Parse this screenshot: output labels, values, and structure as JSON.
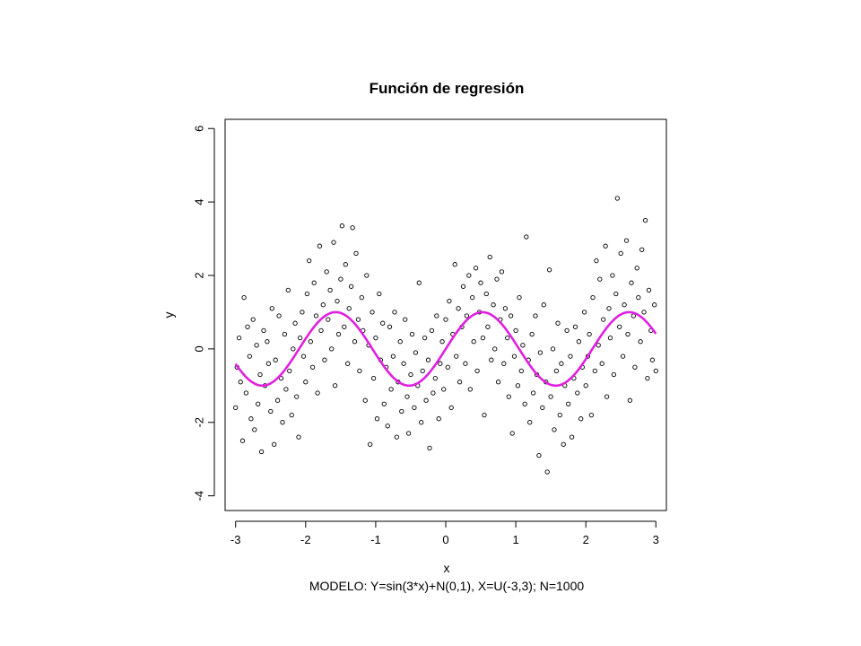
{
  "chart_data": {
    "type": "scatter",
    "title": "Función de regresión",
    "xlabel": "x",
    "ylabel": "y",
    "subtitle": "MODELO: Y=sin(3*x)+N(0,1), X=U(-3,3);  N=1000",
    "xlim": [
      -3.15,
      3.15
    ],
    "ylim": [
      -4.4,
      6.25
    ],
    "xticks": [
      -3,
      -2,
      -1,
      0,
      1,
      2,
      3
    ],
    "yticks": [
      -4,
      -2,
      0,
      2,
      4,
      6
    ],
    "xtick_labels": [
      "-3",
      "-2",
      "-1",
      "0",
      "1",
      "2",
      "3"
    ],
    "ytick_labels": [
      "-4",
      "-2",
      "0",
      "2",
      "4",
      "6"
    ],
    "grid": false,
    "series": [
      {
        "type": "scatter",
        "marker": "open-circle",
        "color": "#000000",
        "points": [
          [
            -3.0,
            -1.6
          ],
          [
            -2.98,
            -0.5
          ],
          [
            -2.95,
            0.3
          ],
          [
            -2.93,
            -0.9
          ],
          [
            -2.9,
            -2.5
          ],
          [
            -2.88,
            1.4
          ],
          [
            -2.85,
            -1.2
          ],
          [
            -2.83,
            0.6
          ],
          [
            -2.8,
            -0.2
          ],
          [
            -2.78,
            -1.9
          ],
          [
            -2.75,
            0.8
          ],
          [
            -2.73,
            -2.2
          ],
          [
            -2.7,
            0.1
          ],
          [
            -2.68,
            -1.5
          ],
          [
            -2.65,
            -0.7
          ],
          [
            -2.63,
            -2.8
          ],
          [
            -2.6,
            0.5
          ],
          [
            -2.58,
            -1.0
          ],
          [
            -2.55,
            0.2
          ],
          [
            -2.53,
            -0.4
          ],
          [
            -2.5,
            -1.7
          ],
          [
            -2.48,
            1.1
          ],
          [
            -2.45,
            -2.6
          ],
          [
            -2.43,
            -0.3
          ],
          [
            -2.4,
            -1.4
          ],
          [
            -2.38,
            0.9
          ],
          [
            -2.35,
            -0.8
          ],
          [
            -2.33,
            -2.0
          ],
          [
            -2.3,
            0.4
          ],
          [
            -2.28,
            -1.1
          ],
          [
            -2.25,
            1.6
          ],
          [
            -2.23,
            -0.6
          ],
          [
            -2.2,
            -1.8
          ],
          [
            -2.18,
            0.0
          ],
          [
            -2.15,
            0.7
          ],
          [
            -2.13,
            -1.3
          ],
          [
            -2.1,
            -2.4
          ],
          [
            -2.08,
            0.3
          ],
          [
            -2.05,
            1.0
          ],
          [
            -2.03,
            -0.2
          ],
          [
            -2.0,
            -0.9
          ],
          [
            -1.98,
            1.5
          ],
          [
            -1.95,
            2.4
          ],
          [
            -1.93,
            0.2
          ],
          [
            -1.9,
            -0.5
          ],
          [
            -1.88,
            1.8
          ],
          [
            -1.85,
            0.9
          ],
          [
            -1.83,
            -1.2
          ],
          [
            -1.8,
            2.8
          ],
          [
            -1.78,
            0.5
          ],
          [
            -1.75,
            1.2
          ],
          [
            -1.73,
            -0.3
          ],
          [
            -1.7,
            2.1
          ],
          [
            -1.68,
            0.8
          ],
          [
            -1.65,
            1.6
          ],
          [
            -1.63,
            0.0
          ],
          [
            -1.6,
            2.9
          ],
          [
            -1.58,
            -1.0
          ],
          [
            -1.55,
            1.3
          ],
          [
            -1.53,
            0.4
          ],
          [
            -1.5,
            1.9
          ],
          [
            -1.48,
            3.35
          ],
          [
            -1.45,
            0.6
          ],
          [
            -1.43,
            2.3
          ],
          [
            -1.4,
            -0.4
          ],
          [
            -1.38,
            1.1
          ],
          [
            -1.35,
            1.7
          ],
          [
            -1.33,
            3.3
          ],
          [
            -1.3,
            0.2
          ],
          [
            -1.28,
            2.6
          ],
          [
            -1.25,
            0.8
          ],
          [
            -1.23,
            -0.6
          ],
          [
            -1.2,
            1.4
          ],
          [
            -1.18,
            0.5
          ],
          [
            -1.15,
            -1.4
          ],
          [
            -1.13,
            2.0
          ],
          [
            -1.1,
            0.1
          ],
          [
            -1.08,
            -2.6
          ],
          [
            -1.05,
            1.0
          ],
          [
            -1.03,
            -0.8
          ],
          [
            -1.0,
            0.3
          ],
          [
            -0.98,
            -1.9
          ],
          [
            -0.95,
            1.5
          ],
          [
            -0.93,
            -0.3
          ],
          [
            -0.9,
            0.7
          ],
          [
            -0.88,
            -1.5
          ],
          [
            -0.85,
            -0.5
          ],
          [
            -0.83,
            -2.1
          ],
          [
            -0.8,
            0.6
          ],
          [
            -0.78,
            -1.1
          ],
          [
            -0.75,
            -0.2
          ],
          [
            -0.73,
            1.0
          ],
          [
            -0.7,
            -2.4
          ],
          [
            -0.68,
            -0.9
          ],
          [
            -0.65,
            0.2
          ],
          [
            -0.63,
            -1.7
          ],
          [
            -0.6,
            -0.4
          ],
          [
            -0.58,
            0.8
          ],
          [
            -0.55,
            -1.3
          ],
          [
            -0.53,
            -2.3
          ],
          [
            -0.5,
            -0.7
          ],
          [
            -0.48,
            0.4
          ],
          [
            -0.45,
            -1.6
          ],
          [
            -0.43,
            -0.1
          ],
          [
            -0.4,
            -1.0
          ],
          [
            -0.38,
            1.8
          ],
          [
            -0.35,
            -2.0
          ],
          [
            -0.33,
            -0.6
          ],
          [
            -0.3,
            0.3
          ],
          [
            -0.28,
            -1.4
          ],
          [
            -0.25,
            -0.3
          ],
          [
            -0.23,
            -2.7
          ],
          [
            -0.2,
            0.5
          ],
          [
            -0.18,
            -1.2
          ],
          [
            -0.15,
            -0.8
          ],
          [
            -0.13,
            0.9
          ],
          [
            -0.1,
            -1.9
          ],
          [
            -0.08,
            -0.4
          ],
          [
            -0.05,
            0.2
          ],
          [
            -0.03,
            -1.1
          ],
          [
            0.0,
            0.8
          ],
          [
            0.03,
            -0.5
          ],
          [
            0.05,
            1.3
          ],
          [
            0.08,
            -1.6
          ],
          [
            0.1,
            0.4
          ],
          [
            0.13,
            2.3
          ],
          [
            0.15,
            -0.2
          ],
          [
            0.18,
            1.1
          ],
          [
            0.2,
            -0.9
          ],
          [
            0.23,
            0.6
          ],
          [
            0.25,
            1.7
          ],
          [
            0.28,
            -0.4
          ],
          [
            0.3,
            0.9
          ],
          [
            0.33,
            2.0
          ],
          [
            0.35,
            -1.1
          ],
          [
            0.38,
            1.4
          ],
          [
            0.4,
            0.2
          ],
          [
            0.43,
            2.2
          ],
          [
            0.45,
            -0.6
          ],
          [
            0.48,
            1.0
          ],
          [
            0.5,
            1.8
          ],
          [
            0.53,
            0.3
          ],
          [
            0.55,
            -1.8
          ],
          [
            0.58,
            1.5
          ],
          [
            0.6,
            0.6
          ],
          [
            0.63,
            2.5
          ],
          [
            0.65,
            -0.3
          ],
          [
            0.68,
            1.2
          ],
          [
            0.7,
            0.0
          ],
          [
            0.73,
            1.9
          ],
          [
            0.75,
            -0.9
          ],
          [
            0.78,
            0.8
          ],
          [
            0.8,
            2.1
          ],
          [
            0.83,
            -0.4
          ],
          [
            0.85,
            1.1
          ],
          [
            0.88,
            0.3
          ],
          [
            0.9,
            -1.3
          ],
          [
            0.93,
            0.9
          ],
          [
            0.95,
            -2.3
          ],
          [
            0.98,
            -0.2
          ],
          [
            1.0,
            0.5
          ],
          [
            1.03,
            -1.0
          ],
          [
            1.05,
            1.4
          ],
          [
            1.08,
            -0.6
          ],
          [
            1.1,
            0.1
          ],
          [
            1.13,
            -1.5
          ],
          [
            1.15,
            3.05
          ],
          [
            1.18,
            -0.3
          ],
          [
            1.2,
            -2.0
          ],
          [
            1.23,
            0.4
          ],
          [
            1.25,
            -1.2
          ],
          [
            1.28,
            0.9
          ],
          [
            1.3,
            -0.7
          ],
          [
            1.33,
            -2.9
          ],
          [
            1.35,
            -0.1
          ],
          [
            1.38,
            -1.6
          ],
          [
            1.4,
            1.2
          ],
          [
            1.43,
            -0.9
          ],
          [
            1.45,
            -3.35
          ],
          [
            1.48,
            2.15
          ],
          [
            1.5,
            -1.3
          ],
          [
            1.53,
            0.0
          ],
          [
            1.55,
            -2.2
          ],
          [
            1.58,
            -0.6
          ],
          [
            1.6,
            0.7
          ],
          [
            1.63,
            -1.8
          ],
          [
            1.65,
            -0.4
          ],
          [
            1.68,
            -2.6
          ],
          [
            1.7,
            -1.0
          ],
          [
            1.73,
            0.5
          ],
          [
            1.75,
            -1.5
          ],
          [
            1.78,
            -0.2
          ],
          [
            1.8,
            -2.4
          ],
          [
            1.83,
            -0.8
          ],
          [
            1.85,
            0.6
          ],
          [
            1.88,
            -1.2
          ],
          [
            1.9,
            0.2
          ],
          [
            1.93,
            -1.9
          ],
          [
            1.95,
            -0.5
          ],
          [
            1.98,
            1.0
          ],
          [
            2.0,
            -1.0
          ],
          [
            2.03,
            -0.2
          ],
          [
            2.05,
            0.4
          ],
          [
            2.08,
            -1.8
          ],
          [
            2.1,
            1.4
          ],
          [
            2.13,
            -0.6
          ],
          [
            2.15,
            2.4
          ],
          [
            2.18,
            0.1
          ],
          [
            2.2,
            1.9
          ],
          [
            2.23,
            -0.4
          ],
          [
            2.25,
            0.8
          ],
          [
            2.28,
            2.8
          ],
          [
            2.3,
            -1.3
          ],
          [
            2.33,
            1.1
          ],
          [
            2.35,
            0.3
          ],
          [
            2.38,
            2.0
          ],
          [
            2.4,
            -0.7
          ],
          [
            2.43,
            1.5
          ],
          [
            2.45,
            4.1
          ],
          [
            2.48,
            0.6
          ],
          [
            2.5,
            2.6
          ],
          [
            2.53,
            -0.2
          ],
          [
            2.55,
            1.2
          ],
          [
            2.58,
            2.95
          ],
          [
            2.6,
            0.4
          ],
          [
            2.63,
            -1.4
          ],
          [
            2.65,
            1.8
          ],
          [
            2.68,
            0.9
          ],
          [
            2.7,
            -0.5
          ],
          [
            2.73,
            2.2
          ],
          [
            2.75,
            1.4
          ],
          [
            2.78,
            0.2
          ],
          [
            2.8,
            2.7
          ],
          [
            2.83,
            1.0
          ],
          [
            2.85,
            3.5
          ],
          [
            2.88,
            -0.8
          ],
          [
            2.9,
            1.6
          ],
          [
            2.93,
            0.5
          ],
          [
            2.95,
            -0.3
          ],
          [
            2.98,
            1.2
          ],
          [
            3.0,
            -0.6
          ]
        ]
      },
      {
        "type": "line",
        "name": "sin(3*x)",
        "color": "#e020e0",
        "x_range": [
          -3.0,
          3.0
        ],
        "function": "sin(3*x)"
      }
    ]
  }
}
